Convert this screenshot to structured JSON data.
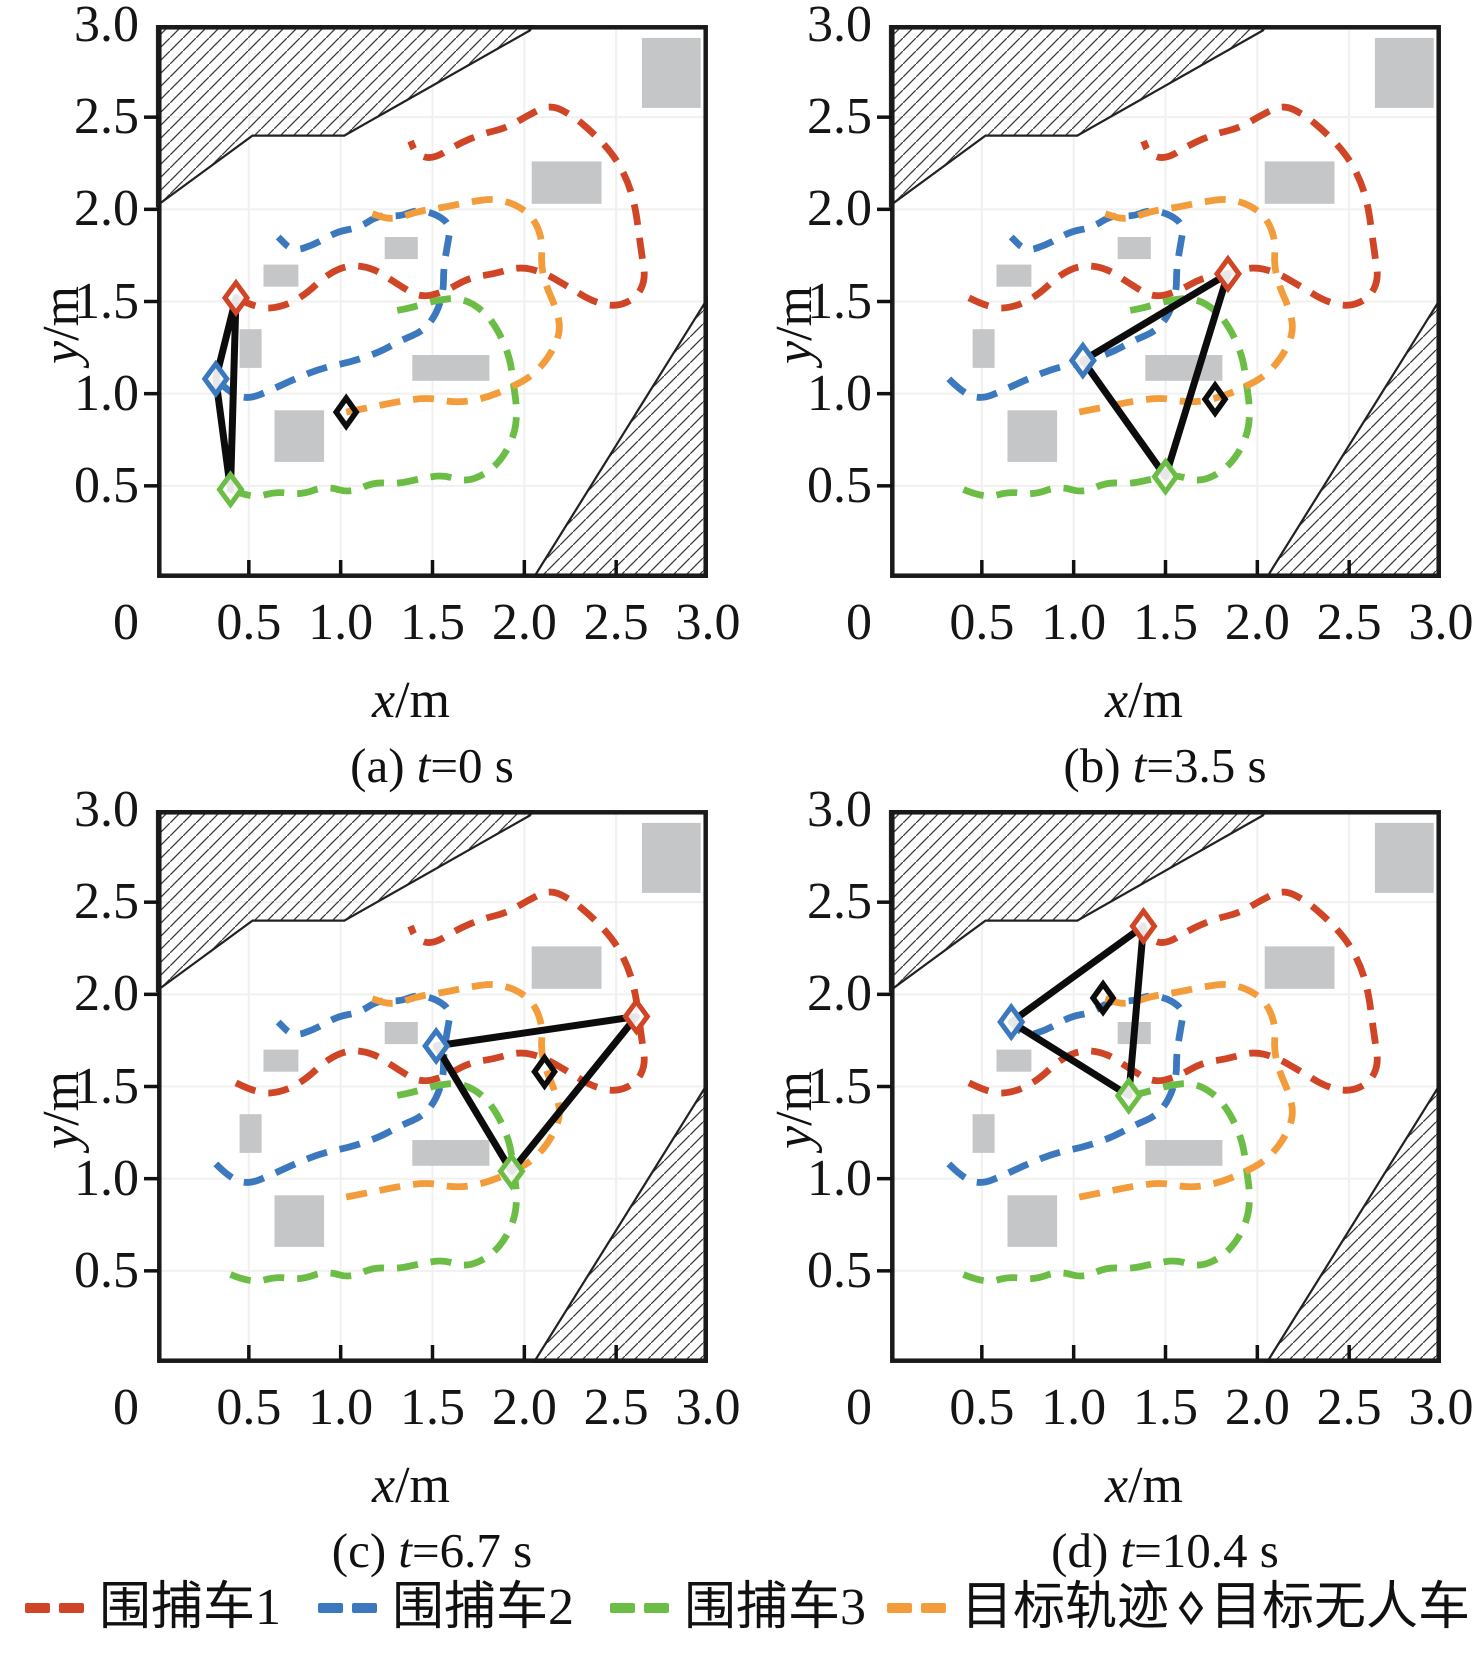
{
  "figure": {
    "background": "#ffffff"
  },
  "axes": {
    "xlabel_var": "x",
    "xlabel_unit": "/m",
    "ylabel_var": "y",
    "ylabel_unit": "/m",
    "x_tick_labels": [
      "0",
      "0.5",
      "1.0",
      "1.5",
      "2.0",
      "2.5",
      "3.0"
    ],
    "y_tick_labels": [
      "3.0",
      "2.5",
      "2.0",
      "1.5",
      "1.0",
      "0.5"
    ]
  },
  "legend": {
    "items": [
      {
        "name": "pursuer-1",
        "label": "围捕车1",
        "color": "#cf4526",
        "marker": "dashes"
      },
      {
        "name": "pursuer-2",
        "label": "围捕车2",
        "color": "#3b78bd",
        "marker": "dashes"
      },
      {
        "name": "pursuer-3",
        "label": "围捕车3",
        "color": "#6cbd45",
        "marker": "dashes"
      },
      {
        "name": "target-trajectory",
        "label": "目标轨迹",
        "color": "#f39c3b",
        "marker": "dashes"
      },
      {
        "name": "target-vehicle",
        "label": "目标无人车",
        "color": "#111111",
        "marker": "diamond"
      }
    ]
  },
  "chart_data": {
    "type": "line",
    "title": "",
    "xlabel": "x/m",
    "ylabel": "y/m",
    "xlim": [
      0,
      3.0
    ],
    "ylim": [
      0,
      3.0
    ],
    "x_ticks": [
      0,
      0.5,
      1.0,
      1.5,
      2.0,
      2.5,
      3.0
    ],
    "y_ticks": [
      0.5,
      1.0,
      1.5,
      2.0,
      2.5,
      3.0
    ],
    "grid": "faint",
    "legend_position": "bottom",
    "series": [
      {
        "name": "围捕车1",
        "color": "#cf4526",
        "style": "dashed",
        "points": [
          [
            0.43,
            1.52
          ],
          [
            0.55,
            1.46
          ],
          [
            0.68,
            1.47
          ],
          [
            0.8,
            1.53
          ],
          [
            0.93,
            1.65
          ],
          [
            1.05,
            1.7
          ],
          [
            1.18,
            1.68
          ],
          [
            1.3,
            1.6
          ],
          [
            1.43,
            1.52
          ],
          [
            1.56,
            1.55
          ],
          [
            1.7,
            1.63
          ],
          [
            1.84,
            1.65
          ],
          [
            1.97,
            1.69
          ],
          [
            2.1,
            1.66
          ],
          [
            2.24,
            1.58
          ],
          [
            2.37,
            1.5
          ],
          [
            2.5,
            1.47
          ],
          [
            2.61,
            1.52
          ],
          [
            2.66,
            1.62
          ],
          [
            2.64,
            1.75
          ],
          [
            2.62,
            1.9
          ],
          [
            2.6,
            2.03
          ],
          [
            2.56,
            2.16
          ],
          [
            2.49,
            2.29
          ],
          [
            2.38,
            2.41
          ],
          [
            2.26,
            2.51
          ],
          [
            2.14,
            2.57
          ],
          [
            2.02,
            2.51
          ],
          [
            1.9,
            2.44
          ],
          [
            1.77,
            2.41
          ],
          [
            1.63,
            2.35
          ],
          [
            1.5,
            2.27
          ],
          [
            1.41,
            2.3
          ],
          [
            1.38,
            2.37
          ]
        ]
      },
      {
        "name": "围捕车2",
        "color": "#3b78bd",
        "style": "dashed",
        "points": [
          [
            0.32,
            1.08
          ],
          [
            0.4,
            1.0
          ],
          [
            0.5,
            0.97
          ],
          [
            0.62,
            1.02
          ],
          [
            0.75,
            1.08
          ],
          [
            0.9,
            1.14
          ],
          [
            1.05,
            1.17
          ],
          [
            1.2,
            1.22
          ],
          [
            1.33,
            1.29
          ],
          [
            1.45,
            1.34
          ],
          [
            1.52,
            1.43
          ],
          [
            1.56,
            1.55
          ],
          [
            1.56,
            1.68
          ],
          [
            1.58,
            1.8
          ],
          [
            1.6,
            1.91
          ],
          [
            1.53,
            1.97
          ],
          [
            1.42,
            2.0
          ],
          [
            1.32,
            1.96
          ],
          [
            1.21,
            1.97
          ],
          [
            1.1,
            1.9
          ],
          [
            0.98,
            1.88
          ],
          [
            0.86,
            1.81
          ],
          [
            0.74,
            1.77
          ],
          [
            0.66,
            1.85
          ]
        ]
      },
      {
        "name": "围捕车3",
        "color": "#6cbd45",
        "style": "dashed",
        "points": [
          [
            0.4,
            0.48
          ],
          [
            0.52,
            0.43
          ],
          [
            0.65,
            0.47
          ],
          [
            0.78,
            0.45
          ],
          [
            0.92,
            0.5
          ],
          [
            1.05,
            0.46
          ],
          [
            1.18,
            0.52
          ],
          [
            1.31,
            0.51
          ],
          [
            1.44,
            0.54
          ],
          [
            1.56,
            0.56
          ],
          [
            1.68,
            0.52
          ],
          [
            1.8,
            0.57
          ],
          [
            1.89,
            0.66
          ],
          [
            1.95,
            0.79
          ],
          [
            1.96,
            0.92
          ],
          [
            1.94,
            1.06
          ],
          [
            1.92,
            1.2
          ],
          [
            1.86,
            1.34
          ],
          [
            1.78,
            1.45
          ],
          [
            1.66,
            1.52
          ],
          [
            1.53,
            1.51
          ],
          [
            1.4,
            1.47
          ],
          [
            1.3,
            1.45
          ]
        ]
      },
      {
        "name": "目标轨迹",
        "color": "#f39c3b",
        "style": "dashed",
        "points": [
          [
            1.03,
            0.9
          ],
          [
            1.18,
            0.93
          ],
          [
            1.33,
            0.96
          ],
          [
            1.48,
            0.98
          ],
          [
            1.62,
            0.95
          ],
          [
            1.77,
            0.97
          ],
          [
            1.92,
            1.03
          ],
          [
            2.05,
            1.1
          ],
          [
            2.15,
            1.22
          ],
          [
            2.2,
            1.35
          ],
          [
            2.17,
            1.47
          ],
          [
            2.12,
            1.58
          ],
          [
            2.09,
            1.7
          ],
          [
            2.1,
            1.82
          ],
          [
            2.06,
            1.94
          ],
          [
            1.97,
            2.02
          ],
          [
            1.84,
            2.06
          ],
          [
            1.7,
            2.04
          ],
          [
            1.56,
            2.01
          ],
          [
            1.42,
            1.99
          ],
          [
            1.28,
            1.94
          ],
          [
            1.16,
            1.98
          ]
        ]
      }
    ],
    "obstacles": {
      "gray_color": "#c5c6c8",
      "gray_rects": [
        [
          2.64,
          2.55,
          0.32,
          0.38
        ],
        [
          2.04,
          2.03,
          0.38,
          0.23
        ],
        [
          1.24,
          1.73,
          0.18,
          0.12
        ],
        [
          0.58,
          1.58,
          0.19,
          0.12
        ],
        [
          0.45,
          1.14,
          0.12,
          0.21
        ],
        [
          1.39,
          1.07,
          0.42,
          0.14
        ],
        [
          0.64,
          0.63,
          0.27,
          0.28
        ]
      ],
      "hatched_polygons": [
        [
          [
            0,
            3.0
          ],
          [
            0,
            2.02
          ],
          [
            0.52,
            2.4
          ],
          [
            1.02,
            2.4
          ],
          [
            2.03,
            2.97
          ],
          [
            2.05,
            3.0
          ]
        ],
        [
          [
            2.05,
            0
          ],
          [
            3.0,
            1.52
          ],
          [
            3.0,
            0
          ]
        ]
      ]
    },
    "panels": [
      {
        "id": "a",
        "time_s": 0,
        "caption": {
          "pre": "(a) ",
          "var": "t",
          "post": "=0 s"
        },
        "formation_triangle": [
          [
            0.43,
            1.52
          ],
          [
            0.32,
            1.08
          ],
          [
            0.4,
            0.48
          ]
        ],
        "triangle_vertex_colors": [
          "#cf4526",
          "#3b78bd",
          "#6cbd45"
        ],
        "target_position": [
          1.03,
          0.9
        ]
      },
      {
        "id": "b",
        "time_s": 3.5,
        "caption": {
          "pre": "(b) ",
          "var": "t",
          "post": "=3.5 s"
        },
        "formation_triangle": [
          [
            1.84,
            1.65
          ],
          [
            1.05,
            1.18
          ],
          [
            1.5,
            0.55
          ]
        ],
        "triangle_vertex_colors": [
          "#cf4526",
          "#3b78bd",
          "#6cbd45"
        ],
        "target_position": [
          1.77,
          0.97
        ]
      },
      {
        "id": "c",
        "time_s": 6.7,
        "caption": {
          "pre": "(c) ",
          "var": "t",
          "post": "=6.7 s"
        },
        "formation_triangle": [
          [
            2.61,
            1.88
          ],
          [
            1.52,
            1.72
          ],
          [
            1.93,
            1.04
          ]
        ],
        "triangle_vertex_colors": [
          "#cf4526",
          "#3b78bd",
          "#6cbd45"
        ],
        "target_position": [
          2.11,
          1.58
        ]
      },
      {
        "id": "d",
        "time_s": 10.4,
        "caption": {
          "pre": "(d) ",
          "var": "t",
          "post": "=10.4 s"
        },
        "formation_triangle": [
          [
            1.38,
            2.37
          ],
          [
            0.66,
            1.85
          ],
          [
            1.3,
            1.45
          ]
        ],
        "triangle_vertex_colors": [
          "#cf4526",
          "#3b78bd",
          "#6cbd45"
        ],
        "target_position": [
          1.16,
          1.98
        ]
      }
    ]
  }
}
